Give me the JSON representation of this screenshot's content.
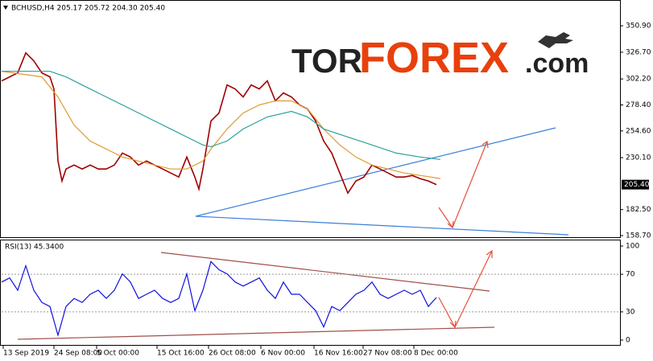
{
  "header": "BCHUSD,H4  205.17 205.72 204.30 205.40",
  "watermark": [
    "TOR",
    "FOREX",
    ".com"
  ],
  "chart_data": [
    {
      "type": "line",
      "title": "BCHUSD,H4  205.17 205.72 204.30 205.40",
      "xlim": [
        0,
        768
      ],
      "ylim": [
        156.5,
        373.8
      ],
      "yticks": [
        {
          "value": 350.9,
          "label": "350.90"
        },
        {
          "value": 326.7,
          "label": "326.70"
        },
        {
          "value": 302.2,
          "label": "302.20"
        },
        {
          "value": 278.4,
          "label": "278.40"
        },
        {
          "value": 254.6,
          "label": "254.60"
        },
        {
          "value": 230.1,
          "label": "230.10"
        },
        {
          "value": 182.5,
          "label": "182.50"
        },
        {
          "value": 158.7,
          "label": "158.70"
        }
      ],
      "current_price": {
        "value": 205.4,
        "label": "205.40"
      },
      "series": [
        {
          "color": "#a00000",
          "x": [
            0,
            10,
            20,
            30,
            40,
            50,
            60,
            65,
            70,
            75,
            80,
            90,
            100,
            110,
            120,
            130,
            140,
            150,
            160,
            170,
            180,
            190,
            200,
            210,
            220,
            230,
            240,
            245,
            250,
            255,
            260,
            270,
            280,
            290,
            300,
            310,
            320,
            330,
            340,
            350,
            360,
            370,
            380,
            390,
            400,
            410,
            420,
            430,
            440,
            450,
            460,
            470,
            480,
            490,
            500,
            510,
            520,
            530,
            540
          ],
          "values": [
            300.4,
            304.1,
            307.7,
            326.1,
            318.8,
            307.7,
            304.1,
            293.1,
            227.0,
            208.7,
            219.7,
            223.3,
            219.7,
            223.3,
            219.7,
            219.7,
            223.3,
            234.3,
            230.7,
            223.3,
            227.0,
            223.3,
            219.7,
            216.0,
            212.3,
            230.7,
            212.3,
            201.3,
            219.7,
            241.7,
            263.7,
            271.0,
            296.7,
            293.1,
            285.7,
            296.7,
            293.1,
            300.4,
            282.1,
            289.4,
            285.7,
            278.4,
            274.7,
            263.7,
            245.3,
            234.3,
            216.0,
            197.6,
            208.7,
            212.3,
            223.3,
            219.7,
            216.0,
            212.3,
            212.3,
            213.8,
            210.8,
            208.7,
            205.4
          ]
        },
        {
          "color": "#e09a30",
          "x": [
            0,
            50,
            70,
            90,
            110,
            130,
            150,
            170,
            190,
            210,
            230,
            250,
            260,
            280,
            300,
            320,
            340,
            360,
            380,
            400,
            420,
            440,
            460,
            480,
            500,
            520,
            545
          ],
          "values": [
            309.2,
            304.1,
            285.7,
            260.0,
            245.3,
            238.0,
            230.7,
            227.0,
            223.3,
            219.7,
            219.7,
            227.0,
            238.0,
            256.4,
            271.0,
            278.4,
            282.1,
            282.1,
            274.7,
            256.4,
            241.7,
            230.7,
            223.3,
            219.7,
            216.0,
            213.8,
            210.9
          ]
        },
        {
          "color": "#2aa198",
          "x": [
            0,
            60,
            80,
            100,
            130,
            160,
            190,
            210,
            230,
            250,
            260,
            280,
            300,
            330,
            360,
            380,
            400,
            430,
            460,
            490,
            520,
            545
          ],
          "values": [
            309.2,
            309.2,
            304.1,
            296.7,
            285.7,
            274.7,
            263.7,
            256.4,
            249.0,
            241.7,
            240.2,
            245.3,
            256.4,
            267.4,
            272.5,
            267.4,
            256.4,
            249.0,
            241.7,
            234.3,
            230.7,
            228.5
          ]
        }
      ]
    },
    {
      "type": "line",
      "title": "RSI(13) 45.3400",
      "xlim": [
        0,
        768
      ],
      "ylim": [
        -6,
        106
      ],
      "yticks": [
        0,
        30,
        70,
        100
      ],
      "levels": [
        30,
        70
      ],
      "xticks": [
        {
          "value": 2,
          "label": "13 Sep 2019"
        },
        {
          "value": 65,
          "label": "24 Sep 08:00"
        },
        {
          "value": 118,
          "label": "5 Oct 00:00"
        },
        {
          "value": 193,
          "label": "15 Oct 16:00"
        },
        {
          "value": 257,
          "label": "26 Oct 08:00"
        },
        {
          "value": 322,
          "label": "6 Nov 00:00"
        },
        {
          "value": 388,
          "label": "16 Nov 16:00"
        },
        {
          "value": 449,
          "label": "27 Nov 08:00"
        },
        {
          "value": 512,
          "label": "8 Dec 00:00"
        }
      ],
      "series": [
        {
          "color": "#1010e0",
          "x": [
            0,
            10,
            20,
            30,
            40,
            50,
            60,
            70,
            80,
            90,
            100,
            110,
            120,
            130,
            140,
            150,
            160,
            170,
            180,
            190,
            200,
            210,
            220,
            230,
            240,
            250,
            260,
            270,
            280,
            290,
            300,
            310,
            320,
            330,
            340,
            350,
            360,
            370,
            380,
            390,
            400,
            410,
            420,
            430,
            440,
            450,
            460,
            470,
            480,
            490,
            500,
            510,
            520,
            530,
            540
          ],
          "values": [
            61.7,
            66.1,
            53.0,
            79.1,
            53.0,
            40.0,
            35.7,
            5.2,
            35.7,
            44.3,
            40.0,
            48.7,
            53.0,
            44.3,
            53.0,
            70.4,
            61.7,
            44.3,
            48.7,
            53.0,
            44.3,
            40.0,
            44.3,
            70.4,
            31.3,
            53.0,
            83.5,
            74.8,
            70.4,
            61.7,
            57.4,
            61.7,
            66.1,
            53.0,
            44.3,
            61.7,
            48.7,
            48.7,
            40.0,
            31.3,
            13.9,
            35.7,
            31.3,
            40.0,
            48.7,
            53.0,
            61.7,
            48.7,
            44.3,
            48.7,
            53.0,
            48.7,
            53.0,
            35.7,
            45.34
          ]
        }
      ]
    }
  ]
}
